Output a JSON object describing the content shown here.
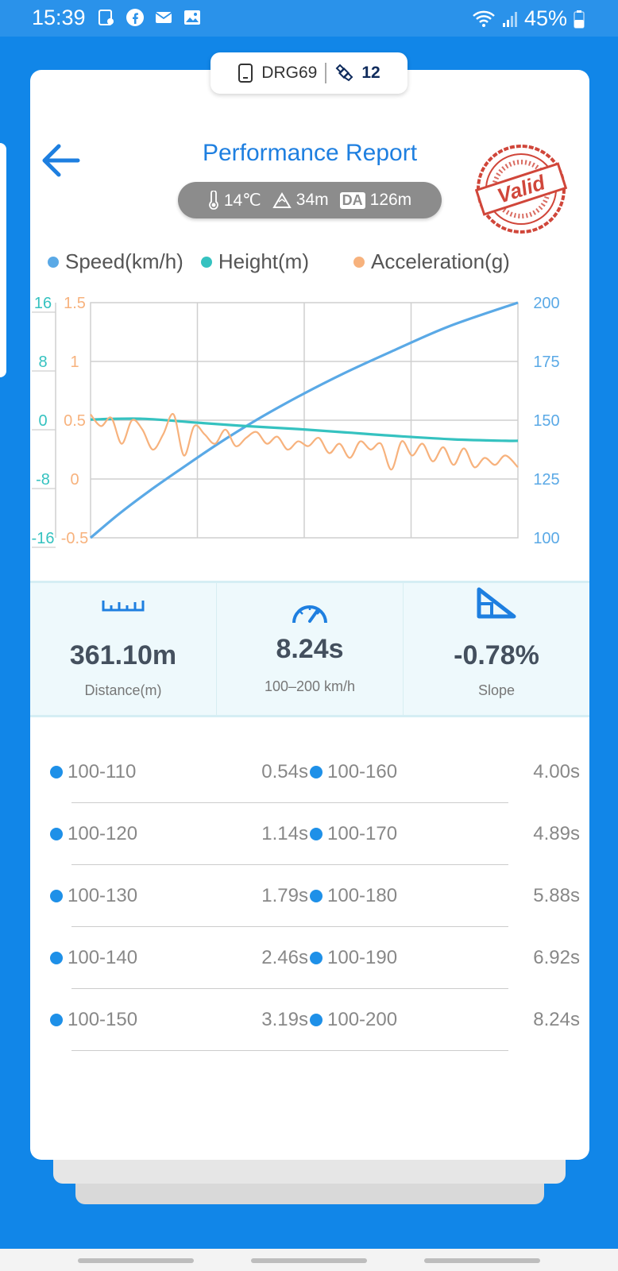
{
  "status": {
    "time": "15:39",
    "battery": "45%"
  },
  "device": {
    "name": "DRG69",
    "satellites": "12"
  },
  "header": {
    "title": "Performance Report",
    "stamp": "Valid"
  },
  "conditions": {
    "temperature": "14℃",
    "altitude": "34m",
    "da_badge": "DA",
    "density_altitude": "126m"
  },
  "legend": [
    {
      "label": "Speed(km/h)",
      "color": "#5aa9e6"
    },
    {
      "label": "Height(m)",
      "color": "#35c2c0"
    },
    {
      "label": "Acceleration(g)",
      "color": "#f7b27d"
    }
  ],
  "chart_data": {
    "type": "line",
    "left_axis_height": {
      "ticks": [
        "16",
        "8",
        "0",
        "-8",
        "-16"
      ],
      "ylim": [
        -16,
        16
      ],
      "color": "#35c2c0"
    },
    "left_axis_accel": {
      "ticks": [
        "1.5",
        "1",
        "0.5",
        "0",
        "-0.5"
      ],
      "ylim": [
        -0.5,
        1.5
      ],
      "color": "#f7b27d"
    },
    "right_axis_speed": {
      "ticks": [
        "200",
        "175",
        "150",
        "125",
        "100"
      ],
      "ylim": [
        100,
        200
      ],
      "color": "#5aa9e6"
    },
    "grid": true,
    "series": [
      {
        "name": "Speed(km/h)",
        "axis": "right",
        "color": "#5aa9e6",
        "x": [
          0,
          0.54,
          1.14,
          1.79,
          2.46,
          3.19,
          4.0,
          4.89,
          5.88,
          6.92,
          8.24
        ],
        "values": [
          100,
          110,
          120,
          130,
          140,
          150,
          160,
          170,
          180,
          190,
          200
        ]
      },
      {
        "name": "Height(m)",
        "axis": "left",
        "color": "#35c2c0",
        "x": [
          0,
          1,
          2,
          3,
          4,
          5,
          6,
          7,
          8,
          8.24
        ],
        "values": [
          0.1,
          0.2,
          -0.3,
          -0.8,
          -1.2,
          -1.7,
          -2.2,
          -2.6,
          -2.8,
          -2.8
        ]
      },
      {
        "name": "Acceleration(g)",
        "axis": "left2",
        "color": "#f7b27d",
        "x": [
          0,
          0.2,
          0.4,
          0.6,
          0.8,
          1.0,
          1.2,
          1.4,
          1.6,
          1.8,
          2.0,
          2.2,
          2.4,
          2.6,
          2.8,
          3.0,
          3.2,
          3.4,
          3.6,
          3.8,
          4.0,
          4.2,
          4.4,
          4.6,
          4.8,
          5.0,
          5.2,
          5.4,
          5.6,
          5.8,
          6.0,
          6.2,
          6.4,
          6.6,
          6.8,
          7.0,
          7.2,
          7.4,
          7.6,
          7.8,
          8.0,
          8.24
        ],
        "values": [
          0.55,
          0.45,
          0.52,
          0.3,
          0.5,
          0.42,
          0.25,
          0.38,
          0.55,
          0.2,
          0.45,
          0.38,
          0.3,
          0.42,
          0.28,
          0.35,
          0.4,
          0.3,
          0.36,
          0.25,
          0.32,
          0.28,
          0.35,
          0.22,
          0.3,
          0.18,
          0.32,
          0.25,
          0.3,
          0.08,
          0.32,
          0.2,
          0.3,
          0.15,
          0.27,
          0.12,
          0.26,
          0.1,
          0.18,
          0.12,
          0.2,
          0.1
        ]
      }
    ]
  },
  "stats": [
    {
      "icon": "ruler-icon",
      "value": "361.10m",
      "label": "Distance(m)"
    },
    {
      "icon": "speedometer-icon",
      "value": "8.24s",
      "label": "100–200 km/h"
    },
    {
      "icon": "slope-icon",
      "value": "-0.78%",
      "label": "Slope"
    }
  ],
  "splits": [
    [
      {
        "range": "100-110",
        "time": "0.54s"
      },
      {
        "range": "100-160",
        "time": "4.00s"
      }
    ],
    [
      {
        "range": "100-120",
        "time": "1.14s"
      },
      {
        "range": "100-170",
        "time": "4.89s"
      }
    ],
    [
      {
        "range": "100-130",
        "time": "1.79s"
      },
      {
        "range": "100-180",
        "time": "5.88s"
      }
    ],
    [
      {
        "range": "100-140",
        "time": "2.46s"
      },
      {
        "range": "100-190",
        "time": "6.92s"
      }
    ],
    [
      {
        "range": "100-150",
        "time": "3.19s"
      },
      {
        "range": "100-200",
        "time": "8.24s"
      }
    ]
  ]
}
